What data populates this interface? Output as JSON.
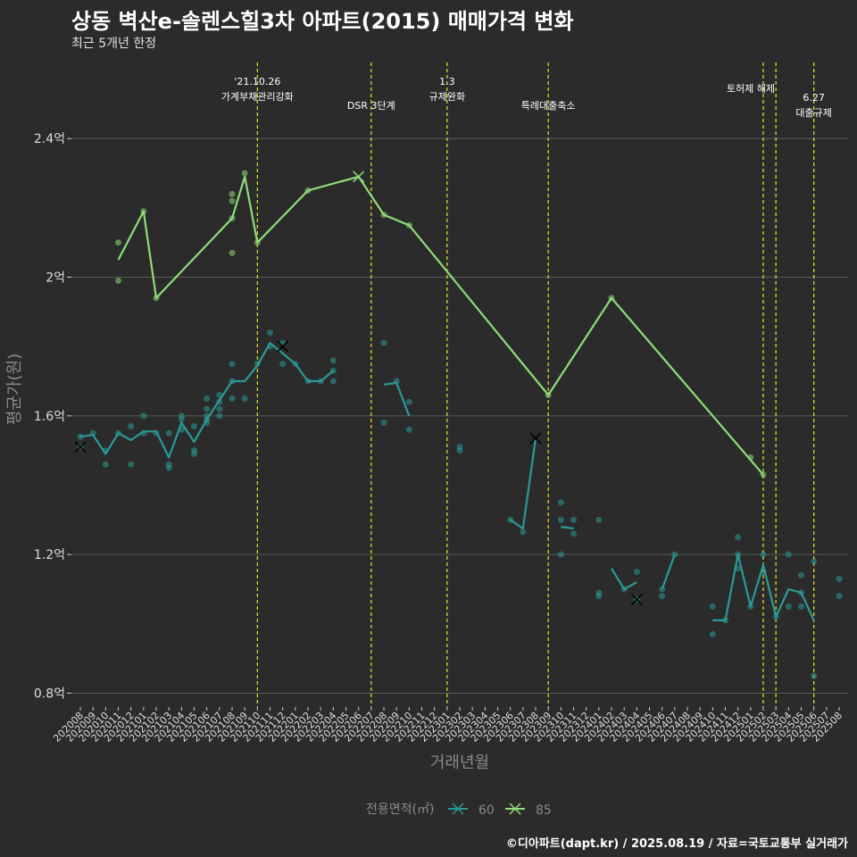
{
  "title": "상동 벽산e-솔렌스힐3차 아파트(2015) 매매가격 변화",
  "subtitle": "최근 5개년 한정",
  "caption": "©디아파트(dapt.kr) / 2025.08.19 / 자료=국토교통부 실거래가",
  "chart_data": {
    "type": "line",
    "xlabel": "거래년월",
    "ylabel": "평균가(원)",
    "x_categories": [
      "202008",
      "202009",
      "202010",
      "202011",
      "202012",
      "202101",
      "202102",
      "202103",
      "202104",
      "202105",
      "202106",
      "202107",
      "202108",
      "202109",
      "202110",
      "202111",
      "202112",
      "202201",
      "202202",
      "202203",
      "202204",
      "202205",
      "202206",
      "202207",
      "202208",
      "202209",
      "202210",
      "202211",
      "202212",
      "202301",
      "202302",
      "202303",
      "202304",
      "202305",
      "202306",
      "202307",
      "202308",
      "202309",
      "202310",
      "202311",
      "202312",
      "202401",
      "202402",
      "202403",
      "202404",
      "202405",
      "202406",
      "202407",
      "202408",
      "202409",
      "202410",
      "202411",
      "202412",
      "202501",
      "202502",
      "202503",
      "202504",
      "202505",
      "202506",
      "202507",
      "202508"
    ],
    "y_ticks": [
      0.8,
      1.2,
      1.6,
      2.0,
      2.4
    ],
    "y_tick_labels": [
      "0.8억",
      "1.2억",
      "1.6억",
      "2억",
      "2.4억"
    ],
    "ylim": [
      0.76,
      2.64
    ],
    "legend": {
      "title": "전용면적(㎡)",
      "position": "bottom",
      "entries": [
        "60",
        "85"
      ]
    },
    "series": [
      {
        "name": "60",
        "color": "#2a9a97",
        "lines": [
          [
            [
              "202008",
              1.54
            ],
            [
              "202009",
              1.545
            ],
            [
              "202010",
              1.49
            ],
            [
              "202011",
              1.55
            ],
            [
              "202012",
              1.53
            ],
            [
              "202101",
              1.555
            ],
            [
              "202102",
              1.555
            ],
            [
              "202103",
              1.48
            ],
            [
              "202104",
              1.58
            ],
            [
              "202105",
              1.525
            ],
            [
              "202106",
              1.59
            ],
            [
              "202107",
              1.645
            ],
            [
              "202108",
              1.7
            ],
            [
              "202109",
              1.7
            ],
            [
              "202110",
              1.745
            ],
            [
              "202111",
              1.81
            ],
            [
              "202112",
              1.78
            ],
            [
              "202201",
              1.75
            ],
            [
              "202202",
              1.7
            ],
            [
              "202203",
              1.7
            ],
            [
              "202204",
              1.73
            ]
          ],
          [
            [
              "202208",
              1.69
            ],
            [
              "202209",
              1.695
            ],
            [
              "202210",
              1.6
            ]
          ],
          [
            [
              "202306",
              1.3
            ],
            [
              "202307",
              1.275
            ],
            [
              "202308",
              1.535
            ]
          ],
          [
            [
              "202310",
              1.28
            ],
            [
              "202311",
              1.275
            ]
          ],
          [
            [
              "202402",
              1.16
            ],
            [
              "202403",
              1.1
            ],
            [
              "202404",
              1.12
            ]
          ],
          [
            [
              "202406",
              1.1
            ],
            [
              "202407",
              1.2
            ]
          ],
          [
            [
              "202410",
              1.01
            ],
            [
              "202411",
              1.01
            ],
            [
              "202412",
              1.2
            ],
            [
              "202501",
              1.05
            ],
            [
              "202502",
              1.17
            ],
            [
              "202503",
              1.02
            ],
            [
              "202504",
              1.1
            ],
            [
              "202505",
              1.09
            ],
            [
              "202506",
              1.01
            ]
          ]
        ],
        "points": [
          [
            "202008",
            1.54
          ],
          [
            "202008",
            1.51
          ],
          [
            "202009",
            1.55
          ],
          [
            "202010",
            1.5
          ],
          [
            "202010",
            1.46
          ],
          [
            "202011",
            1.55
          ],
          [
            "202012",
            1.57
          ],
          [
            "202012",
            1.46
          ],
          [
            "202101",
            1.6
          ],
          [
            "202101",
            1.55
          ],
          [
            "202102",
            1.55
          ],
          [
            "202103",
            1.46
          ],
          [
            "202103",
            1.45
          ],
          [
            "202103",
            1.55
          ],
          [
            "202104",
            1.6
          ],
          [
            "202104",
            1.59
          ],
          [
            "202104",
            1.56
          ],
          [
            "202105",
            1.57
          ],
          [
            "202105",
            1.5
          ],
          [
            "202105",
            1.49
          ],
          [
            "202106",
            1.59
          ],
          [
            "202106",
            1.58
          ],
          [
            "202106",
            1.6
          ],
          [
            "202106",
            1.65
          ],
          [
            "202106",
            1.62
          ],
          [
            "202107",
            1.66
          ],
          [
            "202107",
            1.6
          ],
          [
            "202107",
            1.62
          ],
          [
            "202107",
            1.64
          ],
          [
            "202108",
            1.65
          ],
          [
            "202108",
            1.7
          ],
          [
            "202108",
            1.75
          ],
          [
            "202109",
            1.65
          ],
          [
            "202110",
            1.75
          ],
          [
            "202111",
            1.84
          ],
          [
            "202111",
            1.8
          ],
          [
            "202112",
            1.75
          ],
          [
            "202112",
            1.81
          ],
          [
            "202201",
            1.75
          ],
          [
            "202202",
            1.7
          ],
          [
            "202203",
            1.7
          ],
          [
            "202204",
            1.7
          ],
          [
            "202204",
            1.73
          ],
          [
            "202204",
            1.76
          ],
          [
            "202208",
            1.81
          ],
          [
            "202208",
            1.58
          ],
          [
            "202209",
            1.7
          ],
          [
            "202210",
            1.64
          ],
          [
            "202210",
            1.56
          ],
          [
            "202302",
            1.5
          ],
          [
            "202302",
            1.51
          ],
          [
            "202306",
            1.3
          ],
          [
            "202307",
            1.265
          ],
          [
            "202310",
            1.35
          ],
          [
            "202310",
            1.3
          ],
          [
            "202310",
            1.2
          ],
          [
            "202311",
            1.26
          ],
          [
            "202311",
            1.3
          ],
          [
            "202401",
            1.3
          ],
          [
            "202401",
            1.08
          ],
          [
            "202401",
            1.09
          ],
          [
            "202403",
            1.1
          ],
          [
            "202404",
            1.15
          ],
          [
            "202404",
            1.07
          ],
          [
            "202406",
            1.1
          ],
          [
            "202406",
            1.08
          ],
          [
            "202407",
            1.2
          ],
          [
            "202410",
            1.05
          ],
          [
            "202410",
            0.97
          ],
          [
            "202411",
            1.01
          ],
          [
            "202412",
            1.25
          ],
          [
            "202412",
            1.2
          ],
          [
            "202412",
            1.16
          ],
          [
            "202501",
            1.05
          ],
          [
            "202502",
            1.2
          ],
          [
            "202502",
            1.15
          ],
          [
            "202503",
            1.02
          ],
          [
            "202504",
            1.2
          ],
          [
            "202504",
            1.05
          ],
          [
            "202505",
            1.14
          ],
          [
            "202505",
            1.05
          ],
          [
            "202505",
            1.09
          ],
          [
            "202506",
            1.18
          ],
          [
            "202506",
            0.85
          ],
          [
            "202508",
            1.13
          ],
          [
            "202508",
            1.08
          ]
        ],
        "markers": [
          [
            "202008",
            1.51
          ],
          [
            "202112",
            1.8
          ],
          [
            "202308",
            1.535
          ],
          [
            "202404",
            1.07
          ]
        ]
      },
      {
        "name": "85",
        "color": "#8fdc7a",
        "lines": [
          [
            [
              "202011",
              2.05
            ],
            [
              "202101",
              2.19
            ],
            [
              "202102",
              1.94
            ],
            [
              "202108",
              2.17
            ],
            [
              "202109",
              2.29
            ],
            [
              "202110",
              2.1
            ],
            [
              "202202",
              2.25
            ],
            [
              "202206",
              2.29
            ],
            [
              "202208",
              2.18
            ],
            [
              "202210",
              2.15
            ],
            [
              "202309",
              1.66
            ],
            [
              "202402",
              1.94
            ],
            [
              "202502",
              1.43
            ]
          ]
        ],
        "points": [
          [
            "202011",
            2.1
          ],
          [
            "202011",
            1.99
          ],
          [
            "202101",
            2.19
          ],
          [
            "202102",
            1.94
          ],
          [
            "202108",
            2.24
          ],
          [
            "202108",
            2.22
          ],
          [
            "202108",
            2.17
          ],
          [
            "202108",
            2.07
          ],
          [
            "202109",
            2.3
          ],
          [
            "202110",
            2.1
          ],
          [
            "202202",
            2.25
          ],
          [
            "202208",
            2.18
          ],
          [
            "202210",
            2.15
          ],
          [
            "202309",
            1.66
          ],
          [
            "202402",
            1.94
          ],
          [
            "202501",
            1.48
          ],
          [
            "202502",
            1.43
          ]
        ],
        "markers": [
          [
            "202206",
            2.29
          ]
        ]
      }
    ],
    "events": [
      {
        "x": "202110",
        "label_lines": [
          "'21.10.26",
          "가계부채관리강화"
        ]
      },
      {
        "x": "202207",
        "label_lines": [
          "DSR 3단계"
        ]
      },
      {
        "x": "202301",
        "label_lines": [
          "1.3",
          "규제완화"
        ]
      },
      {
        "x": "202309",
        "label_lines": [
          "특례대출축소"
        ]
      },
      {
        "x": "202502",
        "label_lines": [
          "토허제 해제"
        ]
      },
      {
        "x": "202503",
        "label_lines": []
      },
      {
        "x": "202506",
        "label_lines": [
          "6.27",
          "대출규제"
        ]
      }
    ],
    "event_color": "#e6e62a"
  }
}
